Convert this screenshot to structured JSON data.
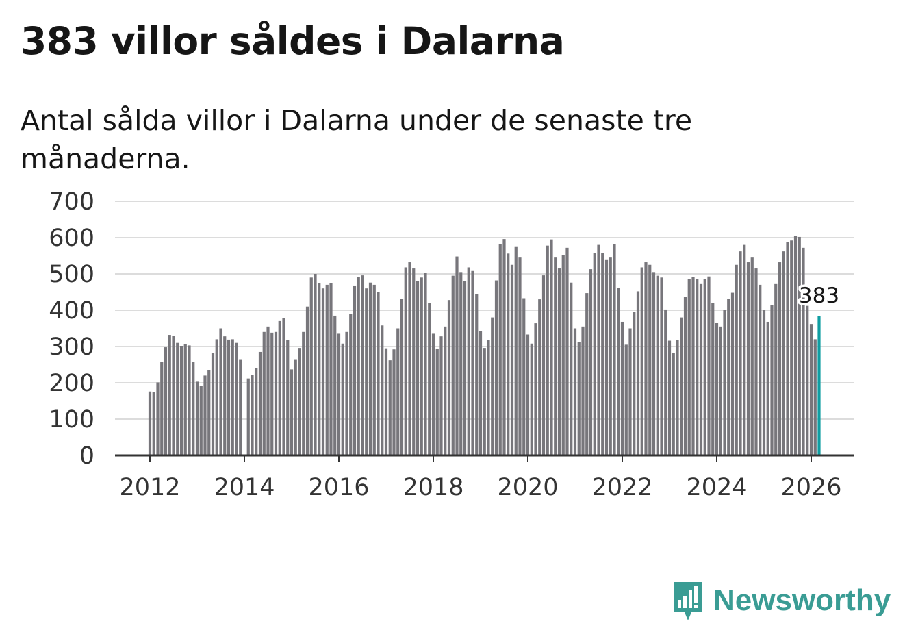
{
  "title": "383 villor såldes i Dalarna",
  "subtitle": "Antal sålda villor i Dalarna under de senaste tre månaderna.",
  "brand": {
    "name": "Newsworthy",
    "color": "#3a9c94"
  },
  "colors": {
    "bar": "#77767b",
    "highlight": "#0f9ea2",
    "grid": "#dcdcdc",
    "axis": "#333333"
  },
  "chart_data": {
    "type": "bar",
    "title": "383 villor såldes i Dalarna",
    "xlabel": "",
    "ylabel": "",
    "ylim": [
      0,
      700
    ],
    "yticks": [
      0,
      100,
      200,
      300,
      400,
      500,
      600,
      700
    ],
    "xticks": [
      "2012",
      "2014",
      "2016",
      "2018",
      "2020",
      "2022",
      "2024",
      "2026"
    ],
    "grid": true,
    "start": "2012-01",
    "highlight_label": "383",
    "values": [
      176,
      174,
      201,
      258,
      298,
      332,
      330,
      310,
      300,
      307,
      303,
      258,
      203,
      192,
      220,
      235,
      282,
      320,
      350,
      328,
      319,
      320,
      310,
      265,
      0,
      212,
      222,
      240,
      285,
      340,
      355,
      338,
      340,
      370,
      378,
      318,
      237,
      265,
      296,
      340,
      410,
      490,
      500,
      475,
      460,
      470,
      475,
      385,
      335,
      308,
      340,
      390,
      468,
      492,
      496,
      460,
      476,
      470,
      450,
      358,
      295,
      262,
      292,
      350,
      432,
      518,
      532,
      515,
      480,
      490,
      502,
      420,
      335,
      293,
      328,
      355,
      428,
      495,
      548,
      505,
      480,
      518,
      508,
      445,
      343,
      296,
      318,
      380,
      482,
      582,
      596,
      556,
      525,
      576,
      545,
      433,
      333,
      308,
      364,
      430,
      496,
      578,
      595,
      545,
      515,
      552,
      572,
      476,
      350,
      313,
      355,
      447,
      513,
      558,
      580,
      558,
      540,
      545,
      582,
      462,
      368,
      305,
      350,
      395,
      452,
      518,
      532,
      525,
      505,
      495,
      490,
      402,
      316,
      282,
      318,
      380,
      437,
      485,
      492,
      485,
      472,
      485,
      493,
      420,
      365,
      355,
      400,
      432,
      448,
      525,
      562,
      580,
      532,
      545,
      515,
      470,
      400,
      368,
      415,
      472,
      532,
      562,
      588,
      592,
      605,
      602,
      572,
      412,
      362,
      320,
      383
    ]
  }
}
